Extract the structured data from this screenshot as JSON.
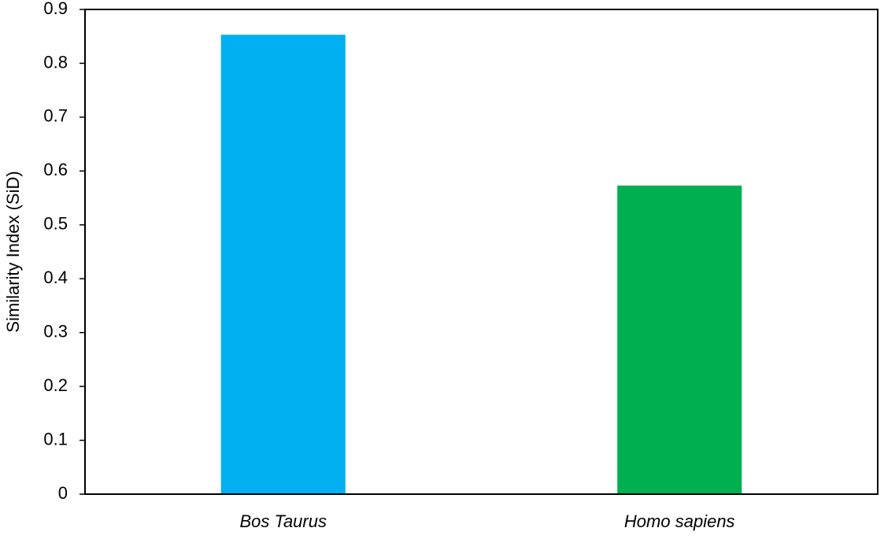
{
  "chart_data": {
    "type": "bar",
    "y_label": "Similarity Index (SiD)",
    "categories": [
      "Bos Taurus",
      "Homo sapiens"
    ],
    "values": [
      0.853,
      0.573
    ],
    "colors": [
      "#00b0f0",
      "#00b050"
    ],
    "ylim": [
      0,
      0.9
    ],
    "yticks": [
      0,
      0.1,
      0.2,
      0.3,
      0.4,
      0.5,
      0.6,
      0.7,
      0.8,
      0.9
    ],
    "grid": false
  }
}
